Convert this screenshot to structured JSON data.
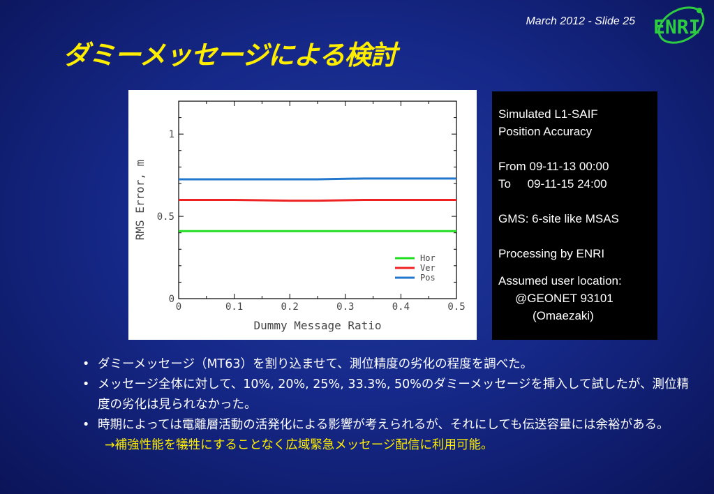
{
  "header": {
    "date": "March 2012 - Slide 25",
    "logo_text": "ENRI"
  },
  "title": "ダミーメッセージによる検討",
  "info_box": {
    "line1": "Simulated L1-SAIF",
    "line2": "Position Accuracy",
    "from": "From 09-11-13 00:00",
    "to": "To     09-11-15 24:00",
    "gms": "GMS: 6-site like MSAS",
    "processing": "Processing by ENRI",
    "assumed": "Assumed user location:",
    "geonet": "@GEONET 93101",
    "place": "(Omaezaki)"
  },
  "bullets": {
    "b1": "ダミーメッセージ（MT63）を割り込ませて、測位精度の劣化の程度を調べた。",
    "b2": "メッセージ全体に対して、10%, 20%, 25%, 33.3%, 50%のダミーメッセージを挿入して試したが、測位精度の劣化は見られなかった。",
    "b3": "時期によっては電離層活動の活発化による影響が考えられるが、それにしても伝送容量には余裕がある。",
    "conclusion": "→補強性能を犠牲にすることなく広域緊急メッセージ配信に利用可能。"
  },
  "chart_data": {
    "type": "line",
    "xlabel": "Dummy Message Ratio",
    "ylabel": "RMS Error, m",
    "xlim": [
      0,
      0.5
    ],
    "ylim": [
      0,
      1.2
    ],
    "xticks": [
      "0",
      "0.1",
      "0.2",
      "0.3",
      "0.4",
      "0.5"
    ],
    "yticks": [
      "0",
      "0.5",
      "1"
    ],
    "x": [
      0,
      0.1,
      0.2,
      0.25,
      0.333,
      0.5
    ],
    "series": [
      {
        "name": "Hor",
        "color": "#22dd22",
        "values": [
          0.41,
          0.41,
          0.41,
          0.41,
          0.41,
          0.41
        ]
      },
      {
        "name": "Ver",
        "color": "#ee2222",
        "values": [
          0.6,
          0.6,
          0.595,
          0.595,
          0.6,
          0.6
        ]
      },
      {
        "name": "Pos",
        "color": "#2277cc",
        "values": [
          0.725,
          0.725,
          0.725,
          0.725,
          0.73,
          0.73
        ]
      }
    ],
    "legend_position": "bottom-right",
    "grid": false
  }
}
